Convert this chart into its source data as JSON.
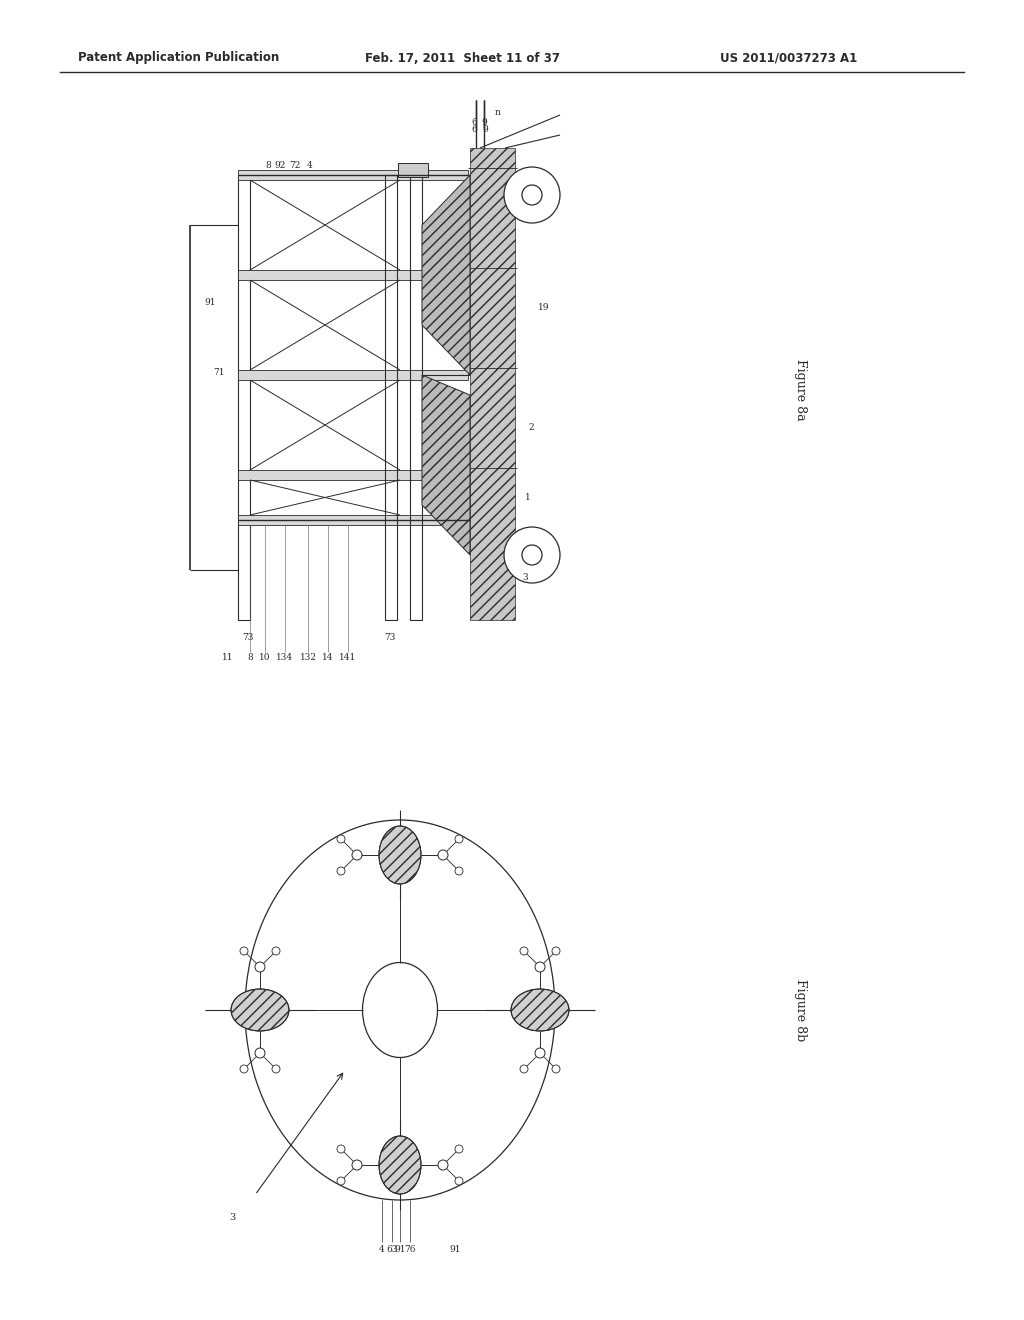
{
  "bg_color": "#ffffff",
  "header_left": "Patent Application Publication",
  "header_mid": "Feb. 17, 2011  Sheet 11 of 37",
  "header_right": "US 2011/0037273 A1",
  "fig8a_label": "Figure 8a",
  "fig8b_label": "Figure 8b",
  "line_color": "#2a2a2a"
}
